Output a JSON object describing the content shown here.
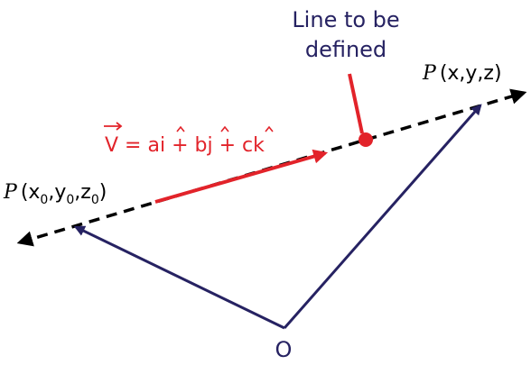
{
  "colors": {
    "navy": "#262262",
    "red": "#e2232a",
    "black": "#000000"
  },
  "callout": {
    "line1": "Line to be",
    "line2": "defined"
  },
  "point_p": {
    "symbol": "P",
    "coords": "(x,y,z)"
  },
  "point_p0": {
    "symbol": "P",
    "open": "(x",
    "sub_x": "0",
    "comma_y": ",y",
    "sub_y": "0",
    "comma_z": ",z",
    "sub_z": "0",
    "close": ")"
  },
  "vector_eq": {
    "v": "V",
    "eq": " = a",
    "i": "i",
    "plus_b": " + b",
    "j": "j",
    "plus_c": " + c",
    "k": "k"
  },
  "origin": {
    "label": "O"
  }
}
